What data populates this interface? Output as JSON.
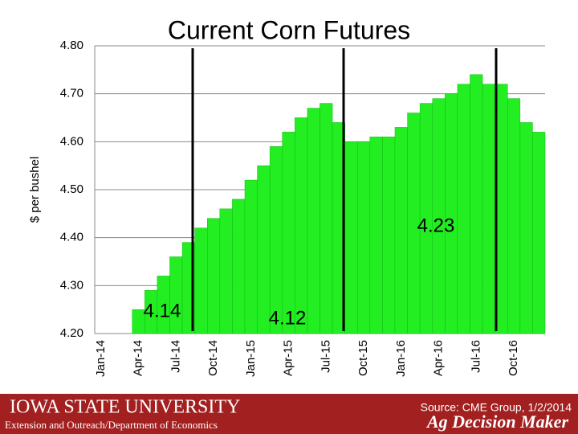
{
  "chart_data": {
    "type": "bar",
    "title": "Current Corn Futures",
    "y_label": "$ per bushel",
    "categories": [
      "Jan-14",
      null,
      null,
      "Apr-14",
      null,
      null,
      "Jul-14",
      null,
      null,
      "Oct-14",
      null,
      null,
      "Jan-15",
      null,
      null,
      "Apr-15",
      null,
      null,
      "Jul-15",
      null,
      null,
      "Oct-15",
      null,
      null,
      "Jan-16",
      null,
      null,
      "Apr-16",
      null,
      null,
      "Jul-16",
      null,
      null,
      "Oct-16",
      null,
      null
    ],
    "values": [
      4.2,
      4.2,
      4.2,
      4.25,
      4.29,
      4.32,
      4.36,
      4.39,
      4.42,
      4.44,
      4.46,
      4.48,
      4.52,
      4.55,
      4.59,
      4.62,
      4.65,
      4.67,
      4.68,
      4.64,
      4.6,
      4.6,
      4.61,
      4.61,
      4.63,
      4.66,
      4.68,
      4.69,
      4.7,
      4.72,
      4.74,
      4.72,
      4.72,
      4.69,
      4.64,
      4.62
    ],
    "color": "#22ee22",
    "ylim": [
      4.2,
      4.8
    ],
    "yticks": [
      {
        "value": 4.2,
        "label": "4.20"
      },
      {
        "value": 4.3,
        "label": "4.30"
      },
      {
        "value": 4.4,
        "label": "4.40"
      },
      {
        "value": 4.5,
        "label": "4.50"
      },
      {
        "value": 4.6,
        "label": "4.60"
      },
      {
        "value": 4.7,
        "label": "4.70"
      },
      {
        "value": 4.8,
        "label": "4.80"
      }
    ],
    "grid": true,
    "annotations": [
      "4.14",
      "4.12",
      "4.23"
    ]
  },
  "footer": {
    "university": "IOWA STATE UNIVERSITY",
    "department": "Extension and Outreach/Department of Economics",
    "source": "Source: CME Group, 1/2/2014",
    "brand": "Ag Decision Maker"
  }
}
